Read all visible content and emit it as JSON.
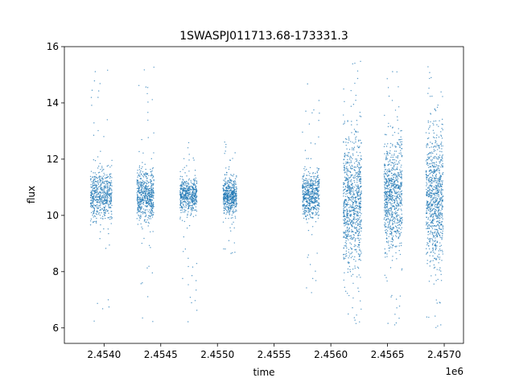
{
  "chart_data": {
    "type": "scatter",
    "title": "1SWASPJ011713.68-173331.3",
    "xlabel": "time",
    "ylabel": "flux",
    "x_offset_label": "1e6",
    "xlim": [
      2.45365,
      2.45717
    ],
    "ylim": [
      5.45,
      16.0
    ],
    "x_ticks": [
      2.454,
      2.4545,
      2.455,
      2.4555,
      2.456,
      2.4565,
      2.457
    ],
    "x_tick_labels": [
      "2.4540",
      "2.4545",
      "2.4550",
      "2.4555",
      "2.4560",
      "2.4565",
      "2.4570"
    ],
    "y_ticks": [
      6,
      8,
      10,
      12,
      14,
      16
    ],
    "y_tick_labels": [
      "6",
      "8",
      "10",
      "12",
      "14",
      "16"
    ],
    "grid": false,
    "legend": "none",
    "marker_color": "#1f77b4",
    "clusters": [
      {
        "x_start": 2.45388,
        "x_end": 2.45407,
        "center": 10.7,
        "spread": 0.45,
        "y_min": 5.9,
        "y_max": 15.4
      },
      {
        "x_start": 2.45429,
        "x_end": 2.45444,
        "center": 10.7,
        "spread": 0.45,
        "y_min": 6.2,
        "y_max": 15.4
      },
      {
        "x_start": 2.45467,
        "x_end": 2.45482,
        "center": 10.7,
        "spread": 0.3,
        "y_min": 6.2,
        "y_max": 12.6
      },
      {
        "x_start": 2.45505,
        "x_end": 2.45517,
        "center": 10.7,
        "spread": 0.3,
        "y_min": 8.6,
        "y_max": 12.7
      },
      {
        "x_start": 2.45575,
        "x_end": 2.4559,
        "center": 10.7,
        "spread": 0.4,
        "y_min": 6.8,
        "y_max": 15.2
      },
      {
        "x_start": 2.45611,
        "x_end": 2.45627,
        "center": 10.5,
        "spread": 1.1,
        "y_min": 6.0,
        "y_max": 15.5
      },
      {
        "x_start": 2.45647,
        "x_end": 2.45663,
        "center": 10.7,
        "spread": 1.0,
        "y_min": 6.0,
        "y_max": 15.4
      },
      {
        "x_start": 2.45684,
        "x_end": 2.45699,
        "center": 10.6,
        "spread": 1.1,
        "y_min": 5.9,
        "y_max": 15.5
      }
    ]
  }
}
